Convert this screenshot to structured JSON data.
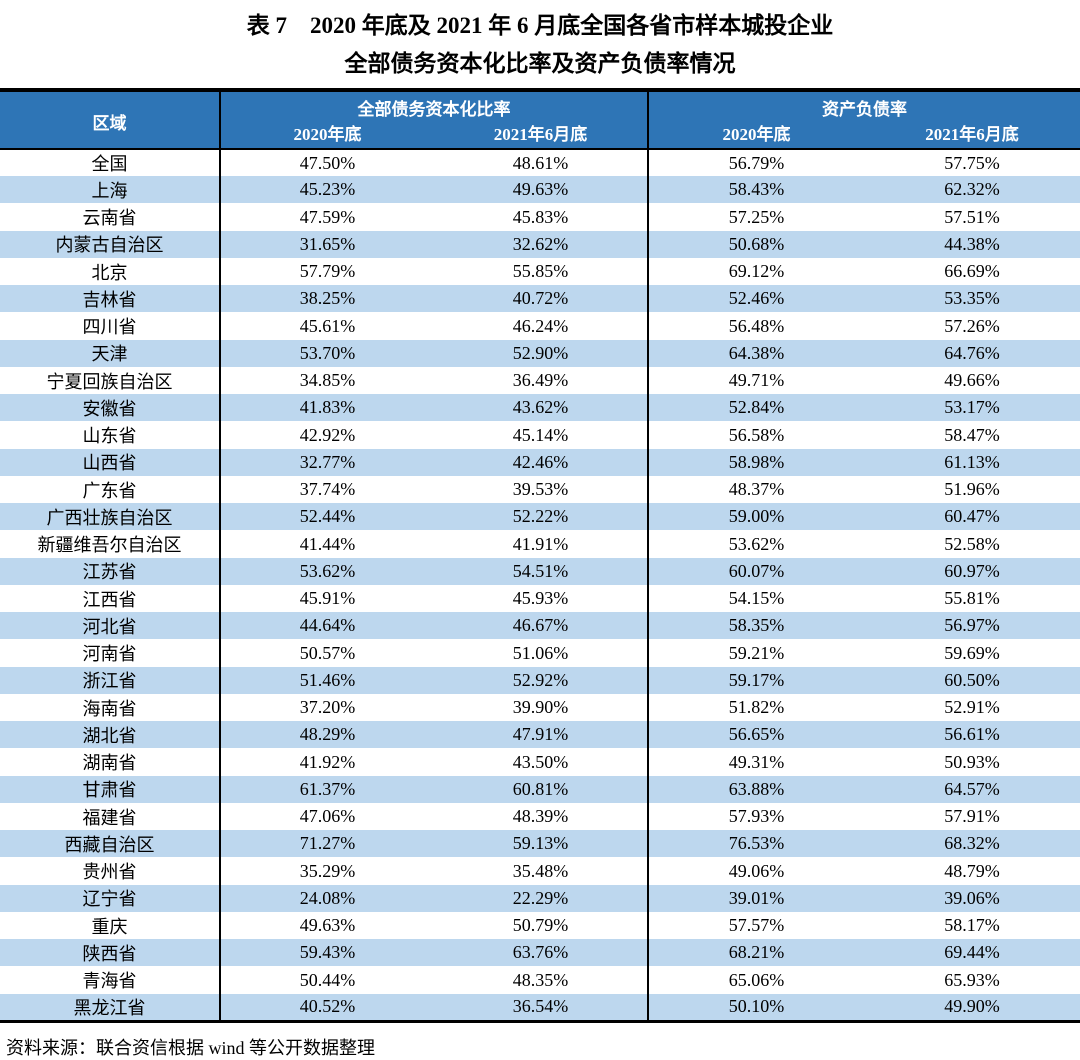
{
  "page": {
    "title_line1": "表 7　2020 年底及 2021 年 6 月底全国各省市样本城投企业",
    "title_line2": "全部债务资本化比率及资产负债率情况",
    "source_note": "资料来源：联合资信根据 wind 等公开数据整理"
  },
  "table": {
    "colors": {
      "header_bg": "#2E75B6",
      "header_text": "#FFFFFF",
      "stripe_bg": "#BDD7EE",
      "border": "#000000"
    },
    "columns": {
      "region": "区域",
      "group1": "全部债务资本化比率",
      "group2": "资产负债率",
      "group1_sub1": "2020年底",
      "group1_sub2": "2021年6月底",
      "group2_sub1": "2020年底",
      "group2_sub2": "2021年6月底"
    },
    "rows": [
      {
        "region": "全国",
        "values": [
          "47.50%",
          "48.61%",
          "56.79%",
          "57.75%"
        ]
      },
      {
        "region": "上海",
        "values": [
          "45.23%",
          "49.63%",
          "58.43%",
          "62.32%"
        ]
      },
      {
        "region": "云南省",
        "values": [
          "47.59%",
          "45.83%",
          "57.25%",
          "57.51%"
        ]
      },
      {
        "region": "内蒙古自治区",
        "values": [
          "31.65%",
          "32.62%",
          "50.68%",
          "44.38%"
        ]
      },
      {
        "region": "北京",
        "values": [
          "57.79%",
          "55.85%",
          "69.12%",
          "66.69%"
        ]
      },
      {
        "region": "吉林省",
        "values": [
          "38.25%",
          "40.72%",
          "52.46%",
          "53.35%"
        ]
      },
      {
        "region": "四川省",
        "values": [
          "45.61%",
          "46.24%",
          "56.48%",
          "57.26%"
        ]
      },
      {
        "region": "天津",
        "values": [
          "53.70%",
          "52.90%",
          "64.38%",
          "64.76%"
        ]
      },
      {
        "region": "宁夏回族自治区",
        "values": [
          "34.85%",
          "36.49%",
          "49.71%",
          "49.66%"
        ]
      },
      {
        "region": "安徽省",
        "values": [
          "41.83%",
          "43.62%",
          "52.84%",
          "53.17%"
        ]
      },
      {
        "region": "山东省",
        "values": [
          "42.92%",
          "45.14%",
          "56.58%",
          "58.47%"
        ]
      },
      {
        "region": "山西省",
        "values": [
          "32.77%",
          "42.46%",
          "58.98%",
          "61.13%"
        ]
      },
      {
        "region": "广东省",
        "values": [
          "37.74%",
          "39.53%",
          "48.37%",
          "51.96%"
        ]
      },
      {
        "region": "广西壮族自治区",
        "values": [
          "52.44%",
          "52.22%",
          "59.00%",
          "60.47%"
        ]
      },
      {
        "region": "新疆维吾尔自治区",
        "values": [
          "41.44%",
          "41.91%",
          "53.62%",
          "52.58%"
        ]
      },
      {
        "region": "江苏省",
        "values": [
          "53.62%",
          "54.51%",
          "60.07%",
          "60.97%"
        ]
      },
      {
        "region": "江西省",
        "values": [
          "45.91%",
          "45.93%",
          "54.15%",
          "55.81%"
        ]
      },
      {
        "region": "河北省",
        "values": [
          "44.64%",
          "46.67%",
          "58.35%",
          "56.97%"
        ]
      },
      {
        "region": "河南省",
        "values": [
          "50.57%",
          "51.06%",
          "59.21%",
          "59.69%"
        ]
      },
      {
        "region": "浙江省",
        "values": [
          "51.46%",
          "52.92%",
          "59.17%",
          "60.50%"
        ]
      },
      {
        "region": "海南省",
        "values": [
          "37.20%",
          "39.90%",
          "51.82%",
          "52.91%"
        ]
      },
      {
        "region": "湖北省",
        "values": [
          "48.29%",
          "47.91%",
          "56.65%",
          "56.61%"
        ]
      },
      {
        "region": "湖南省",
        "values": [
          "41.92%",
          "43.50%",
          "49.31%",
          "50.93%"
        ]
      },
      {
        "region": "甘肃省",
        "values": [
          "61.37%",
          "60.81%",
          "63.88%",
          "64.57%"
        ]
      },
      {
        "region": "福建省",
        "values": [
          "47.06%",
          "48.39%",
          "57.93%",
          "57.91%"
        ]
      },
      {
        "region": "西藏自治区",
        "values": [
          "71.27%",
          "59.13%",
          "76.53%",
          "68.32%"
        ]
      },
      {
        "region": "贵州省",
        "values": [
          "35.29%",
          "35.48%",
          "49.06%",
          "48.79%"
        ]
      },
      {
        "region": "辽宁省",
        "values": [
          "24.08%",
          "22.29%",
          "39.01%",
          "39.06%"
        ]
      },
      {
        "region": "重庆",
        "values": [
          "49.63%",
          "50.79%",
          "57.57%",
          "58.17%"
        ]
      },
      {
        "region": "陕西省",
        "values": [
          "59.43%",
          "63.76%",
          "68.21%",
          "69.44%"
        ]
      },
      {
        "region": "青海省",
        "values": [
          "50.44%",
          "48.35%",
          "65.06%",
          "65.93%"
        ]
      },
      {
        "region": "黑龙江省",
        "values": [
          "40.52%",
          "36.54%",
          "50.10%",
          "49.90%"
        ]
      }
    ]
  }
}
